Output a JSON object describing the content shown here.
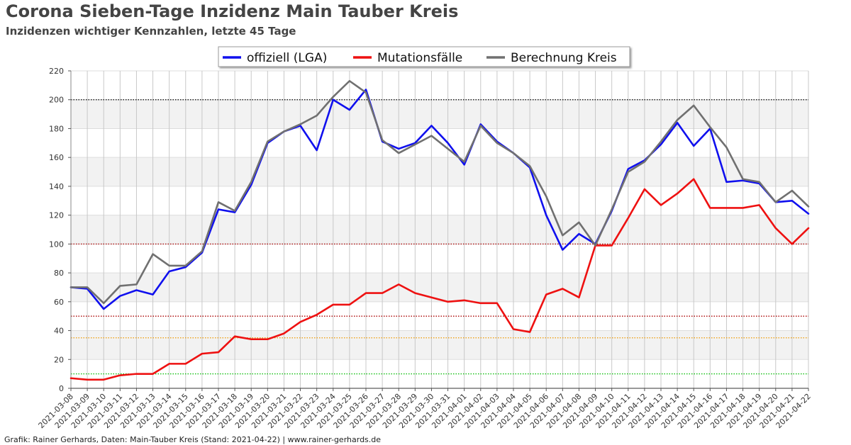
{
  "title": "Corona Sieben-Tage Inzidenz Main Tauber Kreis",
  "subtitle": "Inzidenzen wichtiger Kennzahlen, letzte 45 Tage",
  "footer": "Grafik: Rainer Gerhards, Daten: Main-Tauber Kreis (Stand: 2021-04-22) | www.rainer-gerhards.de",
  "chart_data": {
    "type": "line",
    "ylim": [
      0,
      220
    ],
    "yticks": [
      0,
      20,
      40,
      60,
      80,
      100,
      120,
      140,
      160,
      180,
      200,
      220
    ],
    "grid": "vertical per date, shaded horizontal bands",
    "legend_position": "top-center",
    "x": [
      "2021-03-08",
      "2021-03-09",
      "2021-03-10",
      "2021-03-11",
      "2021-03-12",
      "2021-03-13",
      "2021-03-14",
      "2021-03-15",
      "2021-03-16",
      "2021-03-17",
      "2021-03-18",
      "2021-03-19",
      "2021-03-20",
      "2021-03-21",
      "2021-03-22",
      "2021-03-23",
      "2021-03-24",
      "2021-03-25",
      "2021-03-26",
      "2021-03-27",
      "2021-03-28",
      "2021-03-29",
      "2021-03-30",
      "2021-03-31",
      "2021-04-01",
      "2021-04-02",
      "2021-04-03",
      "2021-04-04",
      "2021-04-05",
      "2021-04-06",
      "2021-04-07",
      "2021-04-08",
      "2021-04-09",
      "2021-04-10",
      "2021-04-11",
      "2021-04-12",
      "2021-04-13",
      "2021-04-14",
      "2021-04-15",
      "2021-04-16",
      "2021-04-17",
      "2021-04-18",
      "2021-04-19",
      "2021-04-20",
      "2021-04-21",
      "2021-04-22"
    ],
    "series": [
      {
        "name": "offiziell (LGA)",
        "color": "#1010ee",
        "values": [
          70,
          69,
          55,
          64,
          68,
          65,
          81,
          84,
          94,
          124,
          122,
          141,
          170,
          178,
          182,
          165,
          200,
          193,
          207,
          171,
          166,
          170,
          182,
          170,
          155,
          183,
          171,
          163,
          153,
          120,
          96,
          107,
          100,
          123,
          152,
          158,
          169,
          184,
          168,
          180,
          143,
          144,
          142,
          129,
          130,
          121
        ]
      },
      {
        "name": "Mutationsfälle",
        "color": "#ee1111",
        "values": [
          7,
          6,
          6,
          9,
          10,
          10,
          17,
          17,
          24,
          25,
          36,
          34,
          34,
          38,
          46,
          51,
          58,
          58,
          66,
          66,
          72,
          66,
          63,
          60,
          61,
          59,
          59,
          41,
          39,
          65,
          69,
          63,
          99,
          99,
          118,
          138,
          127,
          135,
          145,
          125,
          125,
          125,
          127,
          111,
          100,
          111
        ]
      },
      {
        "name": "Berechnung Kreis",
        "color": "#707070",
        "values": [
          70,
          70,
          59,
          71,
          72,
          93,
          85,
          85,
          95,
          129,
          123,
          143,
          171,
          178,
          183,
          189,
          202,
          213,
          205,
          172,
          163,
          169,
          175,
          166,
          157,
          182,
          170,
          163,
          154,
          133,
          106,
          115,
          99,
          124,
          150,
          157,
          171,
          186,
          196,
          181,
          167,
          145,
          143,
          129,
          137,
          126
        ]
      }
    ],
    "reference_lines": [
      {
        "value": 200,
        "color": "#000000"
      },
      {
        "value": 100,
        "color": "#aa0000"
      },
      {
        "value": 50,
        "color": "#aa0000"
      },
      {
        "value": 35,
        "color": "#ee9900"
      },
      {
        "value": 10,
        "color": "#00bb00"
      }
    ],
    "band_color": "#f2f2f2"
  }
}
